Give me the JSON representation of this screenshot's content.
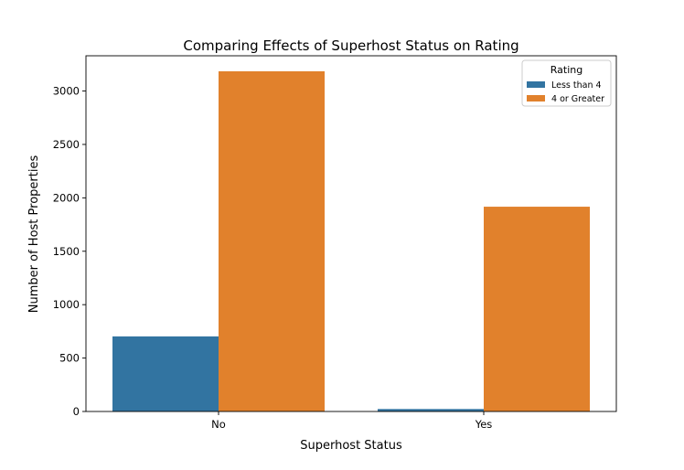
{
  "chart_data": {
    "type": "bar",
    "title": "Comparing Effects of Superhost Status on Rating",
    "xlabel": "Superhost Status",
    "ylabel": "Number of Host Properties",
    "categories": [
      "No",
      "Yes"
    ],
    "series": [
      {
        "name": "Less than 4",
        "color": "#3274a1",
        "values": [
          703,
          23
        ]
      },
      {
        "name": "4 or Greater",
        "color": "#e1812c",
        "values": [
          3185,
          1917
        ]
      }
    ],
    "ylim": [
      0,
      3330
    ],
    "yticks": [
      0,
      500,
      1000,
      1500,
      2000,
      2500,
      3000
    ],
    "grid": false,
    "legend": {
      "title": "Rating",
      "placement": "top-right"
    }
  }
}
